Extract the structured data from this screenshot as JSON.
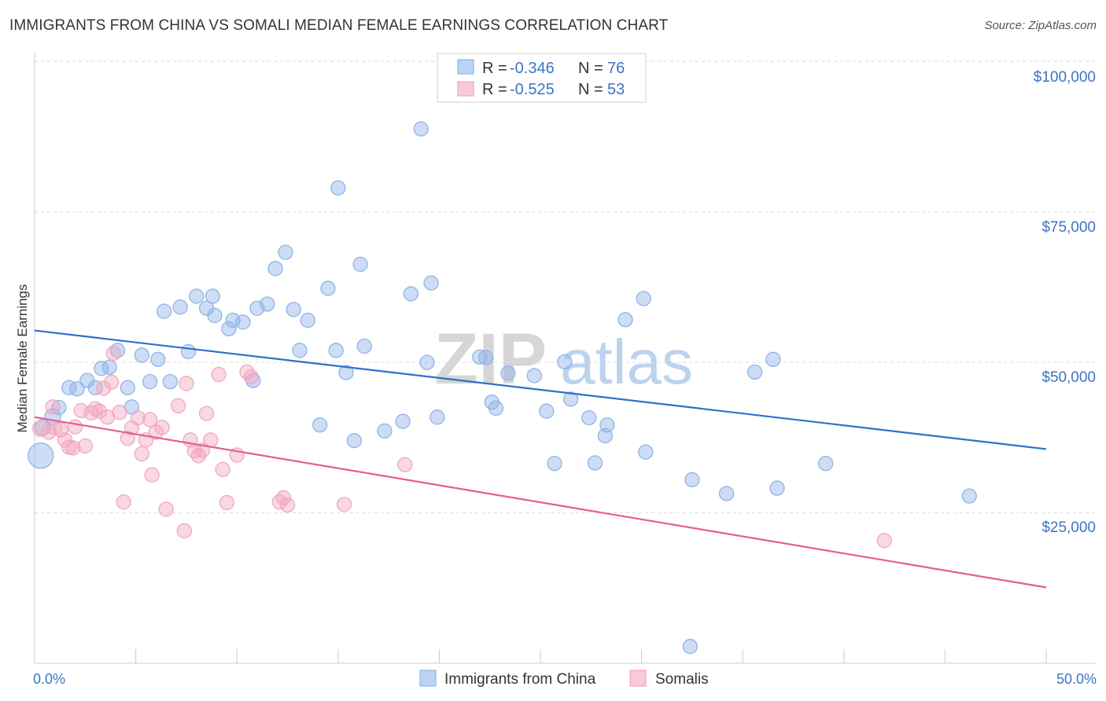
{
  "title": "IMMIGRANTS FROM CHINA VS SOMALI MEDIAN FEMALE EARNINGS CORRELATION CHART",
  "source": "Source: ZipAtlas.com",
  "watermark": {
    "zip": "ZIP",
    "atlas": "atlas"
  },
  "chart_data": {
    "type": "scatter",
    "xlabel": "",
    "ylabel": "Median Female Earnings",
    "xlim": [
      0,
      50
    ],
    "ylim": [
      0,
      105000
    ],
    "x_tick_labels": [
      "0.0%",
      "50.0%"
    ],
    "y_ticks": [
      25000,
      50000,
      75000,
      100000
    ],
    "y_tick_labels": [
      "$25,000",
      "$50,000",
      "$75,000",
      "$100,000"
    ],
    "grid": true,
    "legend": [
      {
        "r_label": "R =",
        "r_value": "-0.346",
        "n_label": "N =",
        "n_value": "76"
      },
      {
        "r_label": "R =",
        "r_value": "-0.525",
        "n_label": "N =",
        "n_value": "53"
      }
    ],
    "series": [
      {
        "name": "Immigrants from China",
        "color": "#8fb4e8",
        "line_color": "#2f6fcc",
        "trend": {
          "x": [
            0,
            50
          ],
          "y": [
            55300,
            35600
          ]
        },
        "points": [
          [
            0.3,
            34500,
            16
          ],
          [
            0.4,
            39200,
            10
          ],
          [
            0.9,
            41000,
            10
          ],
          [
            1.2,
            42500,
            9
          ],
          [
            1.7,
            45800,
            9
          ],
          [
            2.1,
            45600,
            9
          ],
          [
            2.6,
            47000,
            9
          ],
          [
            3.0,
            45800,
            9
          ],
          [
            3.3,
            49000,
            9
          ],
          [
            3.7,
            49200,
            9
          ],
          [
            4.1,
            52000,
            9
          ],
          [
            4.8,
            42600,
            9
          ],
          [
            4.6,
            45800,
            9
          ],
          [
            5.3,
            51200,
            9
          ],
          [
            5.7,
            46800,
            9
          ],
          [
            6.1,
            50500,
            9
          ],
          [
            6.4,
            58500,
            9
          ],
          [
            6.7,
            46800,
            9
          ],
          [
            7.2,
            59200,
            9
          ],
          [
            7.6,
            51800,
            9
          ],
          [
            8.0,
            61000,
            9
          ],
          [
            8.5,
            59000,
            9
          ],
          [
            8.8,
            61000,
            9
          ],
          [
            8.9,
            57800,
            9
          ],
          [
            9.6,
            55600,
            9
          ],
          [
            9.8,
            57000,
            9
          ],
          [
            10.3,
            56700,
            9
          ],
          [
            10.8,
            47000,
            9
          ],
          [
            11.0,
            59000,
            9
          ],
          [
            11.5,
            59700,
            9
          ],
          [
            11.9,
            65600,
            9
          ],
          [
            12.4,
            68300,
            9
          ],
          [
            12.8,
            58800,
            9
          ],
          [
            13.1,
            52000,
            9
          ],
          [
            13.5,
            57000,
            9
          ],
          [
            14.1,
            39600,
            9
          ],
          [
            14.9,
            52000,
            9
          ],
          [
            14.5,
            62300,
            9
          ],
          [
            15.0,
            79000,
            9
          ],
          [
            15.4,
            48300,
            9
          ],
          [
            15.8,
            37000,
            9
          ],
          [
            16.1,
            66300,
            9
          ],
          [
            16.3,
            52700,
            9
          ],
          [
            17.3,
            38600,
            9
          ],
          [
            18.2,
            40200,
            9
          ],
          [
            18.6,
            61400,
            9
          ],
          [
            19.1,
            88800,
            9
          ],
          [
            19.4,
            50000,
            9
          ],
          [
            19.6,
            63200,
            9
          ],
          [
            19.9,
            40900,
            9
          ],
          [
            22.0,
            50900,
            9
          ],
          [
            22.3,
            50800,
            9
          ],
          [
            22.6,
            43400,
            9
          ],
          [
            22.8,
            42400,
            9
          ],
          [
            23.4,
            48200,
            9
          ],
          [
            24.7,
            47800,
            9
          ],
          [
            25.3,
            41900,
            9
          ],
          [
            25.7,
            33200,
            9
          ],
          [
            26.2,
            50100,
            9
          ],
          [
            26.5,
            43900,
            9
          ],
          [
            27.4,
            40800,
            9
          ],
          [
            27.7,
            33300,
            9
          ],
          [
            28.2,
            37800,
            9
          ],
          [
            28.3,
            39600,
            9
          ],
          [
            29.2,
            57100,
            9
          ],
          [
            30.1,
            60600,
            9
          ],
          [
            30.2,
            35100,
            9
          ],
          [
            32.5,
            30500,
            9
          ],
          [
            32.4,
            2800,
            9
          ],
          [
            34.2,
            28200,
            9
          ],
          [
            35.6,
            48400,
            9
          ],
          [
            36.5,
            50500,
            9
          ],
          [
            36.7,
            29100,
            9
          ],
          [
            39.1,
            33200,
            9
          ],
          [
            46.2,
            27800,
            9
          ]
        ]
      },
      {
        "name": "Somalis",
        "color": "#f2a7c0",
        "line_color": "#e35f8e",
        "trend": {
          "x": [
            0,
            50
          ],
          "y": [
            40900,
            12600
          ]
        },
        "points": [
          [
            0.3,
            39000,
            10
          ],
          [
            0.7,
            38400,
            9
          ],
          [
            0.9,
            42600,
            9
          ],
          [
            1.0,
            39200,
            9
          ],
          [
            1.3,
            38800,
            9
          ],
          [
            1.5,
            37100,
            9
          ],
          [
            1.7,
            35900,
            9
          ],
          [
            1.9,
            35800,
            9
          ],
          [
            2.0,
            39300,
            9
          ],
          [
            2.3,
            42000,
            9
          ],
          [
            2.5,
            36100,
            9
          ],
          [
            2.8,
            41600,
            9
          ],
          [
            3.0,
            42300,
            9
          ],
          [
            3.2,
            41900,
            9
          ],
          [
            3.4,
            45700,
            9
          ],
          [
            3.6,
            40900,
            9
          ],
          [
            3.8,
            46700,
            9
          ],
          [
            3.9,
            51500,
            9
          ],
          [
            4.2,
            41700,
            9
          ],
          [
            4.4,
            26800,
            9
          ],
          [
            4.6,
            37400,
            9
          ],
          [
            4.8,
            39100,
            9
          ],
          [
            5.1,
            40800,
            9
          ],
          [
            5.3,
            34800,
            9
          ],
          [
            5.5,
            37100,
            9
          ],
          [
            5.7,
            40500,
            9
          ],
          [
            5.8,
            31300,
            9
          ],
          [
            6.0,
            38400,
            9
          ],
          [
            6.3,
            39200,
            9
          ],
          [
            6.5,
            25600,
            9
          ],
          [
            7.1,
            42800,
            9
          ],
          [
            7.4,
            22000,
            9
          ],
          [
            7.5,
            46500,
            9
          ],
          [
            7.7,
            37100,
            9
          ],
          [
            7.9,
            35300,
            9
          ],
          [
            8.1,
            34500,
            9
          ],
          [
            8.3,
            35400,
            9
          ],
          [
            8.5,
            41500,
            9
          ],
          [
            8.7,
            37100,
            9
          ],
          [
            9.1,
            48000,
            9
          ],
          [
            9.3,
            32200,
            9
          ],
          [
            9.5,
            26700,
            9
          ],
          [
            10.0,
            34600,
            9
          ],
          [
            10.5,
            48400,
            9
          ],
          [
            10.7,
            47600,
            9
          ],
          [
            12.1,
            26800,
            9
          ],
          [
            12.3,
            27500,
            9
          ],
          [
            12.5,
            26300,
            9
          ],
          [
            15.3,
            26400,
            9
          ],
          [
            18.3,
            33000,
            9
          ],
          [
            42.0,
            20400,
            9
          ]
        ]
      }
    ]
  },
  "bottom_legend": [
    {
      "label": "Immigrants from China"
    },
    {
      "label": "Somalis"
    }
  ]
}
